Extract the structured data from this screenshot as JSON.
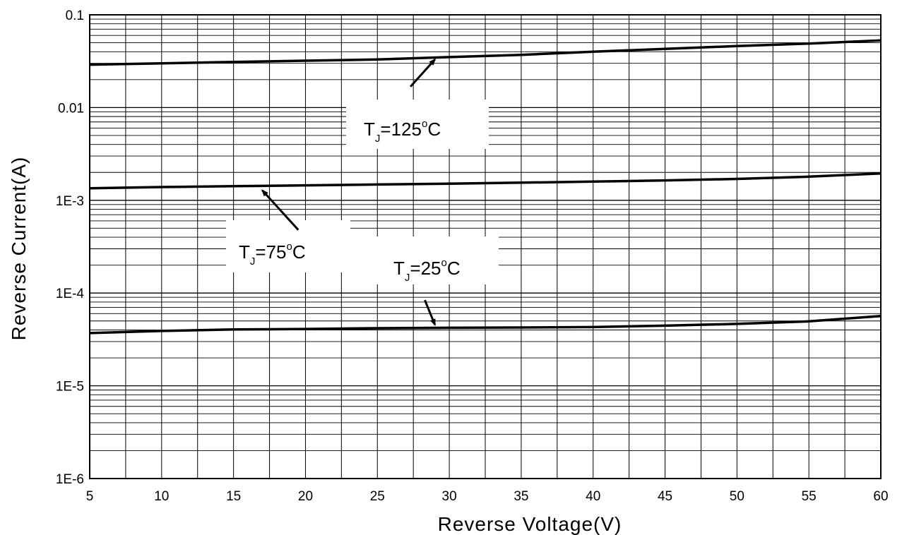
{
  "chart_data": {
    "type": "line",
    "title": "",
    "xlabel": "Reverse Voltage(V)",
    "ylabel": "Reverse Current(A)",
    "x_scale": "linear",
    "y_scale": "log",
    "xlim": [
      5,
      60
    ],
    "ylim": [
      1e-06,
      0.1
    ],
    "grid": true,
    "x_ticks": [
      {
        "value": 5,
        "label": "5"
      },
      {
        "value": 10,
        "label": "10"
      },
      {
        "value": 15,
        "label": "15"
      },
      {
        "value": 20,
        "label": "20"
      },
      {
        "value": 25,
        "label": "25"
      },
      {
        "value": 30,
        "label": "30"
      },
      {
        "value": 35,
        "label": "35"
      },
      {
        "value": 40,
        "label": "40"
      },
      {
        "value": 45,
        "label": "45"
      },
      {
        "value": 50,
        "label": "50"
      },
      {
        "value": 55,
        "label": "55"
      },
      {
        "value": 60,
        "label": "60"
      }
    ],
    "y_ticks": [
      {
        "value": 0.1,
        "label": "0.1"
      },
      {
        "value": 0.01,
        "label": "0.01"
      },
      {
        "value": 0.001,
        "label": "1E-3"
      },
      {
        "value": 0.0001,
        "label": "1E-4"
      },
      {
        "value": 1e-05,
        "label": "1E-5"
      },
      {
        "value": 1e-06,
        "label": "1E-6"
      }
    ],
    "series": [
      {
        "x": [
          5,
          10,
          15,
          20,
          25,
          30,
          35,
          40,
          45,
          50,
          55,
          60
        ],
        "values": [
          0.029,
          0.03,
          0.031,
          0.032,
          0.033,
          0.035,
          0.037,
          0.04,
          0.043,
          0.046,
          0.049,
          0.053
        ],
        "color": "#000000"
      },
      {
        "x": [
          5,
          10,
          15,
          20,
          25,
          30,
          35,
          40,
          45,
          50,
          55,
          60
        ],
        "values": [
          0.00135,
          0.00139,
          0.00142,
          0.00145,
          0.00148,
          0.00151,
          0.00155,
          0.00159,
          0.00164,
          0.0017,
          0.0018,
          0.00195
        ],
        "color": "#000000"
      },
      {
        "x": [
          5,
          10,
          15,
          20,
          25,
          30,
          35,
          40,
          45,
          50,
          55,
          60
        ],
        "values": [
          3.7e-05,
          3.9e-05,
          4.05e-05,
          4.1e-05,
          4.18e-05,
          4.22e-05,
          4.25e-05,
          4.3e-05,
          4.45e-05,
          4.65e-05,
          4.95e-05,
          5.65e-05
        ],
        "color": "#000000"
      }
    ],
    "annotations": [
      {
        "label_main": "T",
        "label_sub": "J",
        "label_rest": "=125",
        "label_deg": "o",
        "label_end": "C",
        "arrow_from": {
          "x": 27.3,
          "y": 0.0168
        },
        "arrow_to": {
          "x": 29.0,
          "y": 0.033
        }
      },
      {
        "label_main": "T",
        "label_sub": "J",
        "label_rest": "=75",
        "label_deg": "o",
        "label_end": "C",
        "arrow_from": {
          "x": 19.5,
          "y": 0.00048
        },
        "arrow_to": {
          "x": 17.0,
          "y": 0.00128
        }
      },
      {
        "label_main": "T",
        "label_sub": "J",
        "label_rest": "=25",
        "label_deg": "o",
        "label_end": "C",
        "arrow_from": {
          "x": 28.3,
          "y": 8.4e-05
        },
        "arrow_to": {
          "x": 29.0,
          "y": 4.55e-05
        }
      }
    ]
  }
}
